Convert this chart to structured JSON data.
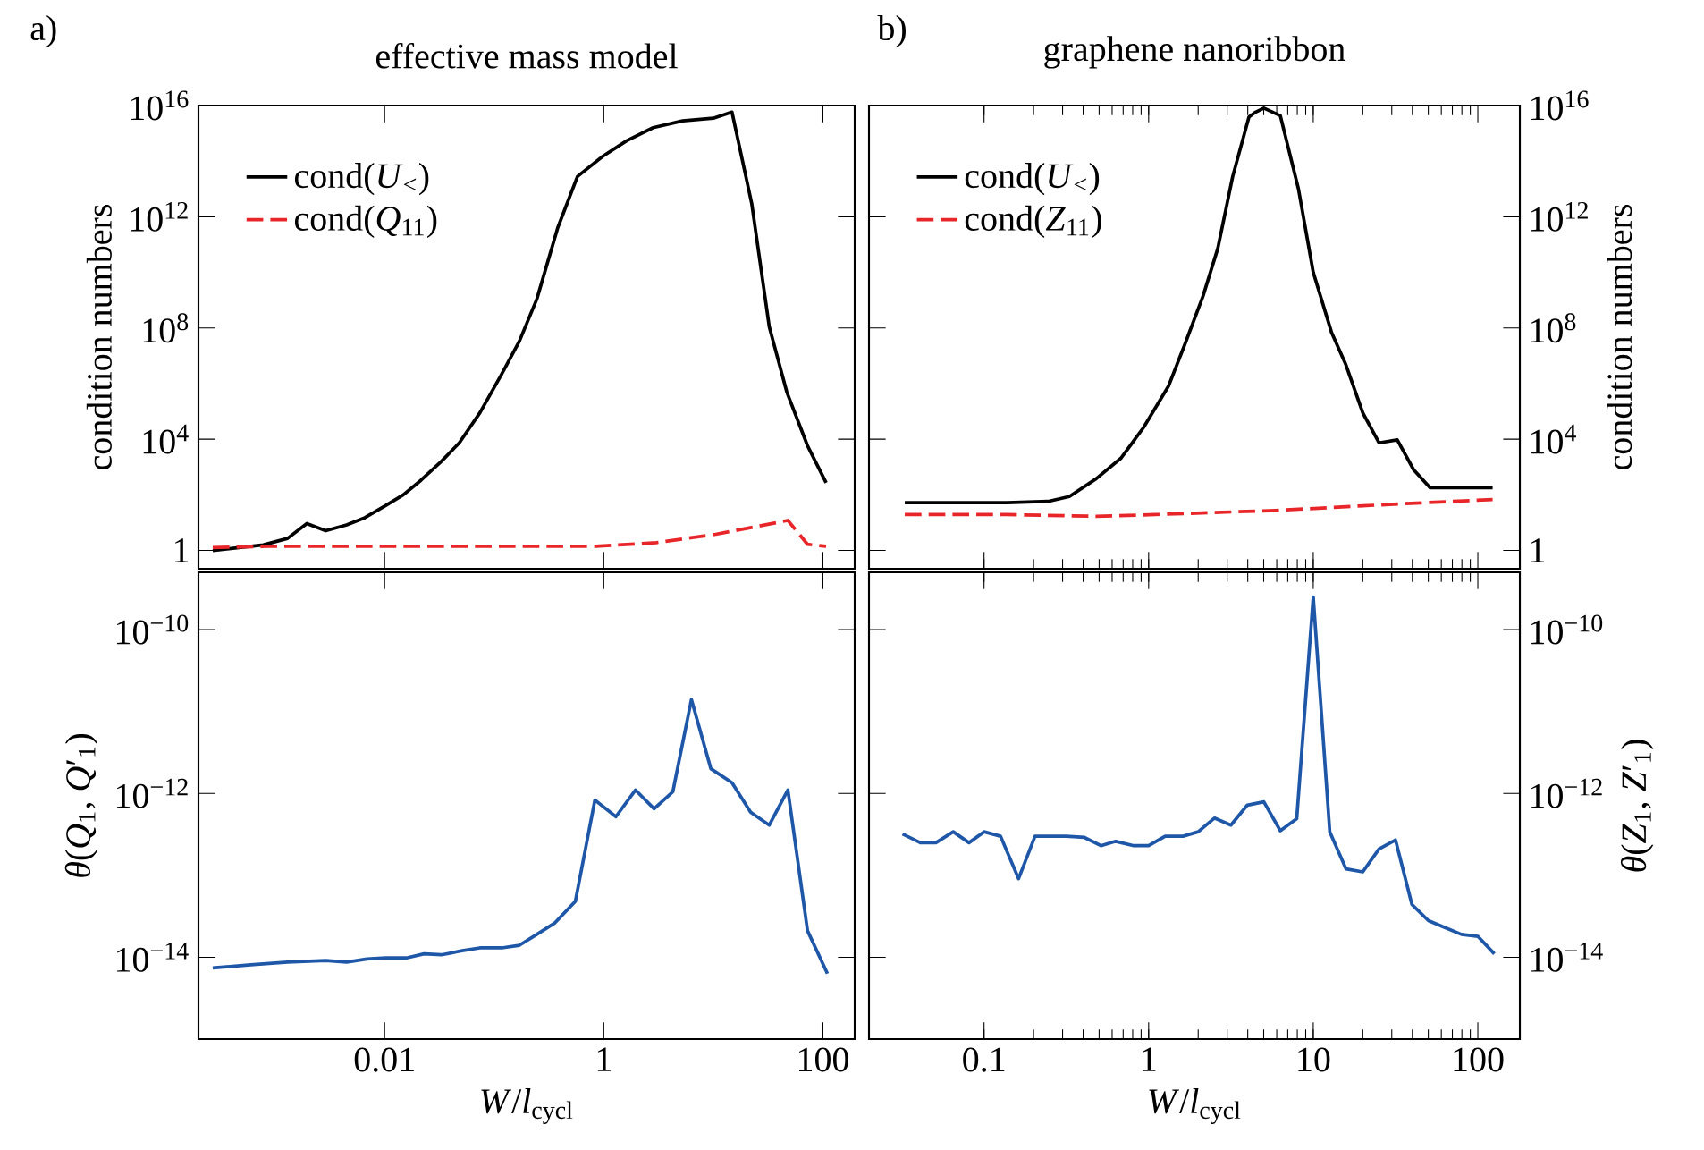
{
  "chart_data": [
    {
      "type": "line",
      "title": "effective mass model",
      "ylabel": "condition numbers",
      "annotations": [
        "a)"
      ],
      "log": "xy",
      "legend": "top left",
      "tick_labels": "y",
      "xlim": [
        0.0002,
        195
      ],
      "ylim": [
        0.22,
        1e+16
      ],
      "xticks": [
        0.01,
        1,
        100
      ],
      "yticks": [
        1,
        {
          "value": 10000,
          "label": "10$^{4}$"
        },
        {
          "value": 100000000.0,
          "label": "10$^{8}$"
        },
        {
          "value": 1000000000000.0,
          "label": "10$^{12}$"
        },
        {
          "value": 1e+16,
          "label": "10$^{16}$"
        }
      ],
      "series": [
        {
          "name": "cond(*U*$_{<}$)",
          "color": "#000000",
          "line_style": "solid",
          "x": [
            0.00027,
            0.00047,
            0.00078,
            0.0013,
            0.00195,
            0.0029,
            0.0045,
            0.0066,
            0.0102,
            0.0148,
            0.0214,
            0.033,
            0.048,
            0.074,
            0.117,
            0.17,
            0.245,
            0.38,
            0.575,
            0.98,
            1.62,
            2.82,
            5.25,
            10,
            14.8,
            22.4,
            32.4,
            46.8,
            72.4,
            107
          ],
          "values": [
            1,
            1.26,
            1.58,
            2.7,
            9.3,
            5.1,
            8.3,
            15,
            41,
            100,
            330,
            1600,
            7400,
            89000.0,
            2200000.0,
            34000000.0,
            1100000000.0,
            400000000000.0,
            28000000000000.0,
            150000000000000.0,
            540000000000000.0,
            1600000000000000.0,
            2800000000000000.0,
            3500000000000000.0,
            5800000000000000.0,
            3000000000000.0,
            110000000.0,
            500000.0,
            5800,
            270
          ]
        },
        {
          "name": "cond(*Q*$_{11}$)",
          "color": "#e8262a",
          "line_style": "dashed",
          "x": [
            0.00027,
            0.00089,
            0.02,
            0.85,
            3.0,
            10.5,
            47.9,
            72.4,
            107
          ],
          "values": [
            1.26,
            1.41,
            1.41,
            1.41,
            1.9,
            3.8,
            12,
            1.66,
            1.41
          ]
        }
      ]
    },
    {
      "type": "line",
      "title": "graphene nanoribbon",
      "ylabel": "condition numbers",
      "annotations": [
        "b)"
      ],
      "log": "xy",
      "legend": "top left",
      "tick_labels": "y",
      "xlim": [
        0.02,
        180
      ],
      "ylim": [
        0.22,
        1e+16
      ],
      "xticks": [
        0.1,
        1,
        10,
        100
      ],
      "yticks": [
        1,
        {
          "value": 10000,
          "label": "10$^{4}$"
        },
        {
          "value": 100000000.0,
          "label": "10$^{8}$"
        },
        {
          "value": 1000000000000.0,
          "label": "10$^{12}$"
        },
        {
          "value": 1e+16,
          "label": "10$^{16}$"
        }
      ],
      "series": [
        {
          "name": "cond(*U*$_{<}$)",
          "color": "#000000",
          "line_style": "solid",
          "x": [
            0.033,
            0.06,
            0.138,
            0.245,
            0.33,
            0.48,
            0.68,
            0.93,
            1.32,
            1.66,
            2.14,
            2.63,
            3.24,
            4.07,
            4.47,
            5.01,
            6.31,
            8.13,
            10,
            12.9,
            15.8,
            20,
            25.1,
            32.4,
            40.7,
            51.3,
            72.4,
            123
          ],
          "values": [
            52,
            52,
            52,
            58,
            87,
            380,
            2100,
            26000.0,
            810000.0,
            26000000.0,
            1400000000.0,
            72000000000.0,
            28000000000000.0,
            3900000000000000.0,
            5800000000000000.0,
            8100000000000000.0,
            4300000000000000.0,
            10000000000000.0,
            10000000000.0,
            71000000.0,
            4700000.0,
            89000.0,
            7400,
            9500,
            800,
            180,
            180,
            180
          ]
        },
        {
          "name": "cond(*Z*$_{11}$)",
          "color": "#e8262a",
          "line_style": "dashed",
          "x": [
            0.033,
            0.138,
            0.48,
            1.1,
            5.9,
            30.9,
            123
          ],
          "values": [
            19.5,
            19.5,
            17,
            19.5,
            27.5,
            46,
            68
          ]
        }
      ]
    },
    {
      "type": "line",
      "xlabel": "*W*/*l*$_{cycl}$",
      "ylabel": "*θ*(*Q*$_{1}$, *Q*′$_{1}$)",
      "log": "xy",
      "xlim": [
        0.0002,
        195
      ],
      "ylim": [
        1e-15,
        5e-10
      ],
      "xticks": [
        0.01,
        1,
        100
      ],
      "yticks": [
        {
          "value": 1e-14,
          "label": "10$^{−14}$"
        },
        {
          "value": 1e-12,
          "label": "10$^{−12}$"
        },
        {
          "value": 1e-10,
          "label": "10$^{−10}$"
        }
      ],
      "series": [
        {
          "color": "#1f57a8",
          "line_style": "solid",
          "x": [
            0.00027,
            0.0006,
            0.0013,
            0.0029,
            0.0045,
            0.0069,
            0.0102,
            0.0158,
            0.0229,
            0.033,
            0.051,
            0.074,
            0.117,
            0.17,
            0.245,
            0.355,
            0.55,
            0.83,
            1.29,
            1.95,
            2.88,
            4.27,
            6.31,
            9.5,
            14.8,
            21.9,
            32.4,
            47.9,
            72.4,
            110
          ],
          "values": [
            7.4e-15,
            8.1e-15,
            8.7e-15,
            9.1e-15,
            8.7e-15,
            9.5e-15,
            9.8e-15,
            9.8e-15,
            1.1e-14,
            1.07e-14,
            1.2e-14,
            1.3e-14,
            1.3e-14,
            1.4e-14,
            1.9e-14,
            2.6e-14,
            4.8e-14,
            8.3e-13,
            5.2e-13,
            1.1e-12,
            6.5e-13,
            1.05e-12,
            1.4e-11,
            2e-12,
            1.35e-12,
            5.9e-13,
            4.1e-13,
            1.1e-12,
            2.1e-14,
            6.3e-15
          ]
        }
      ]
    },
    {
      "type": "line",
      "xlabel": "*W*/*l*$_{cycl}$",
      "ylabel": "*θ*(*Z*$_{1}$, *Z*′$_{1}$)",
      "log": "xy",
      "xlim": [
        0.02,
        180
      ],
      "ylim": [
        1e-15,
        5e-10
      ],
      "xticks": [
        0.1,
        1,
        10,
        100
      ],
      "yticks": [
        {
          "value": 1e-14,
          "label": "10$^{−14}$"
        },
        {
          "value": 1e-12,
          "label": "10$^{−12}$"
        },
        {
          "value": 1e-10,
          "label": "10$^{−10}$"
        }
      ],
      "series": [
        {
          "color": "#1f57a8",
          "line_style": "solid",
          "x": [
            0.032,
            0.041,
            0.051,
            0.065,
            0.081,
            0.1,
            0.126,
            0.162,
            0.204,
            0.316,
            0.407,
            0.513,
            0.631,
            0.813,
            1.0,
            1.26,
            1.62,
            2.0,
            2.51,
            3.16,
            3.98,
            5.01,
            6.31,
            7.94,
            10,
            12.6,
            15.8,
            20,
            25.1,
            31.6,
            39.8,
            50.1,
            63.1,
            79.4,
            100,
            126
          ],
          "values": [
            3.2e-13,
            2.5e-13,
            2.5e-13,
            3.4e-13,
            2.5e-13,
            3.4e-13,
            3e-13,
            9.1e-14,
            3e-13,
            3e-13,
            2.9e-13,
            2.3e-13,
            2.6e-13,
            2.3e-13,
            2.3e-13,
            3e-13,
            3e-13,
            3.4e-13,
            5e-13,
            4.1e-13,
            7.2e-13,
            7.9e-13,
            3.5e-13,
            4.9e-13,
            2.5e-10,
            3.4e-13,
            1.2e-13,
            1.1e-13,
            2.1e-13,
            2.7e-13,
            4.4e-14,
            2.8e-14,
            2.3e-14,
            1.9e-14,
            1.8e-14,
            1.1e-14
          ]
        }
      ]
    }
  ]
}
